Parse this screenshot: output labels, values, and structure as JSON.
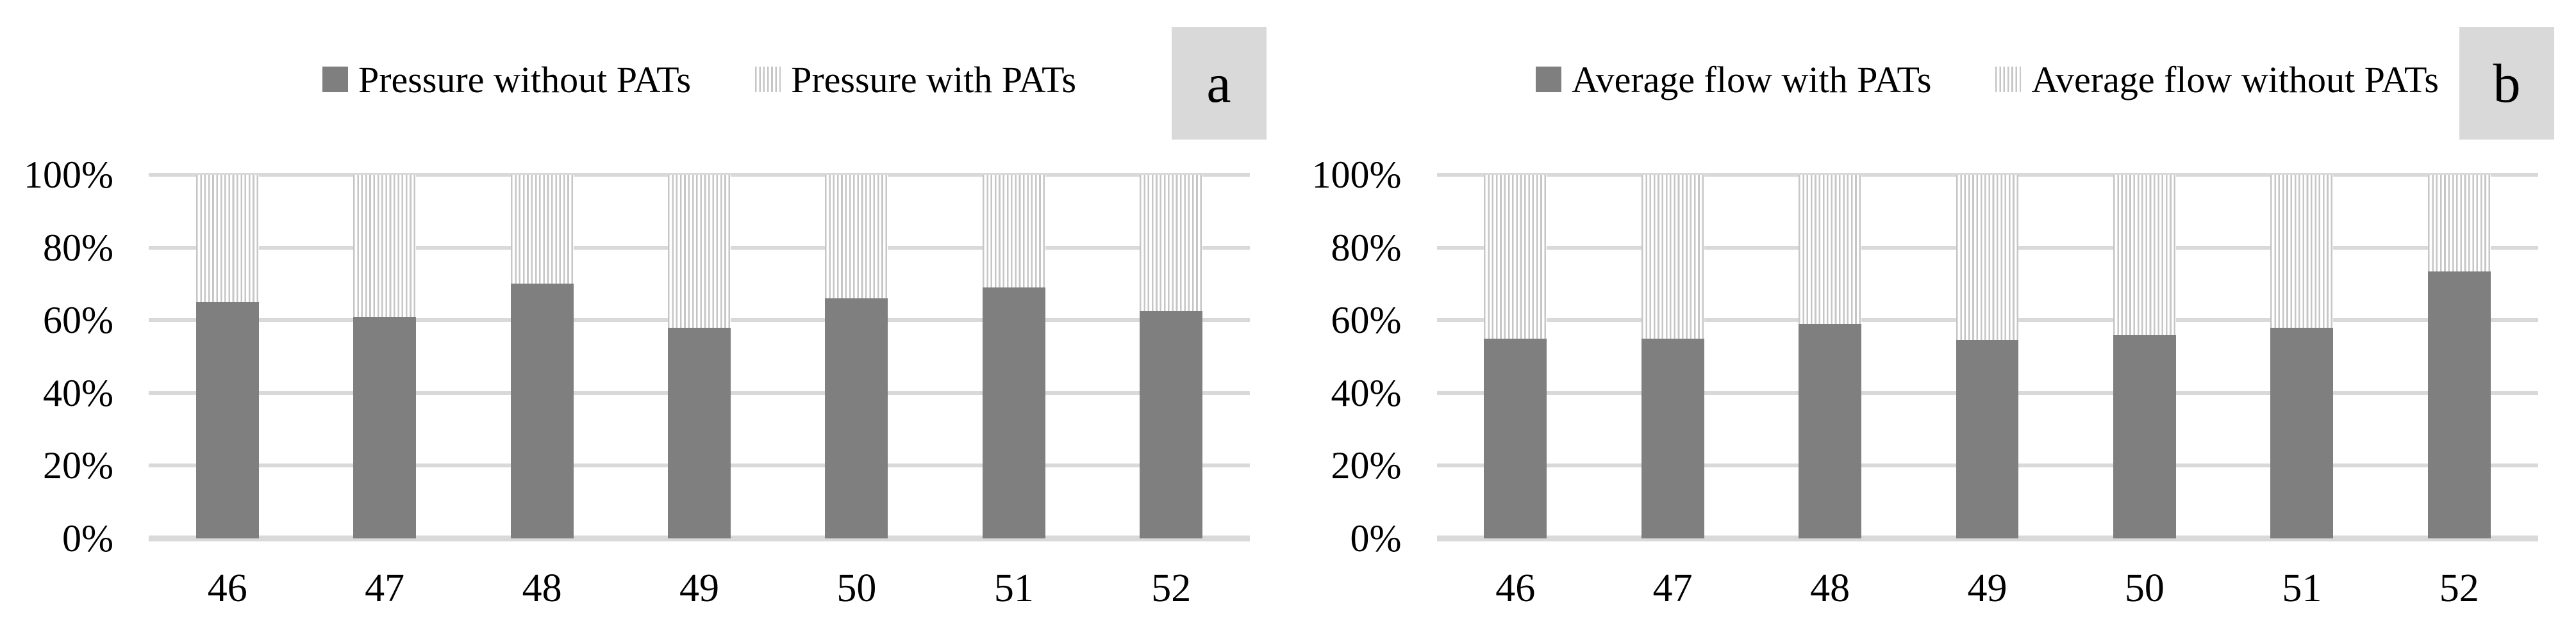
{
  "colors": {
    "solid_series_fill": "#7f7f7f",
    "stripe_color": "#c6c6c6",
    "stripe_background": "#ffffff",
    "grid_line": "#d9d9d9",
    "axis_line": "#d9d9d9",
    "panel_label_box_bg": "#d9d9d9",
    "text": "#000000"
  },
  "chart_data": [
    {
      "type": "bar",
      "subtype": "stacked-100-percent",
      "panel_label": "a",
      "categories": [
        "46",
        "47",
        "48",
        "49",
        "50",
        "51",
        "52"
      ],
      "series": [
        {
          "name": "Pressure without PATs",
          "style": "solid",
          "values": [
            65,
            61,
            70,
            58,
            66,
            69,
            62.5
          ]
        },
        {
          "name": "Pressure with PATs",
          "style": "striped",
          "values": [
            35,
            39,
            30,
            42,
            34,
            31,
            37.5
          ]
        }
      ],
      "y_ticks": [
        "0%",
        "20%",
        "40%",
        "60%",
        "80%",
        "100%"
      ],
      "ylim": [
        0,
        100
      ],
      "grid": true,
      "legend_position": "top-center",
      "title": "",
      "xlabel": "",
      "ylabel": ""
    },
    {
      "type": "bar",
      "subtype": "stacked-100-percent",
      "panel_label": "b",
      "categories": [
        "46",
        "47",
        "48",
        "49",
        "50",
        "51",
        "52"
      ],
      "series": [
        {
          "name": "Average flow with PATs",
          "style": "solid",
          "values": [
            55,
            55,
            59,
            54.5,
            56,
            58,
            73.5
          ]
        },
        {
          "name": "Average flow without PATs",
          "style": "striped",
          "values": [
            45,
            45,
            41,
            45.5,
            44,
            42,
            26.5
          ]
        }
      ],
      "y_ticks": [
        "0%",
        "20%",
        "40%",
        "60%",
        "80%",
        "100%"
      ],
      "ylim": [
        0,
        100
      ],
      "grid": true,
      "legend_position": "top-center",
      "title": "",
      "xlabel": "",
      "ylabel": ""
    }
  ]
}
